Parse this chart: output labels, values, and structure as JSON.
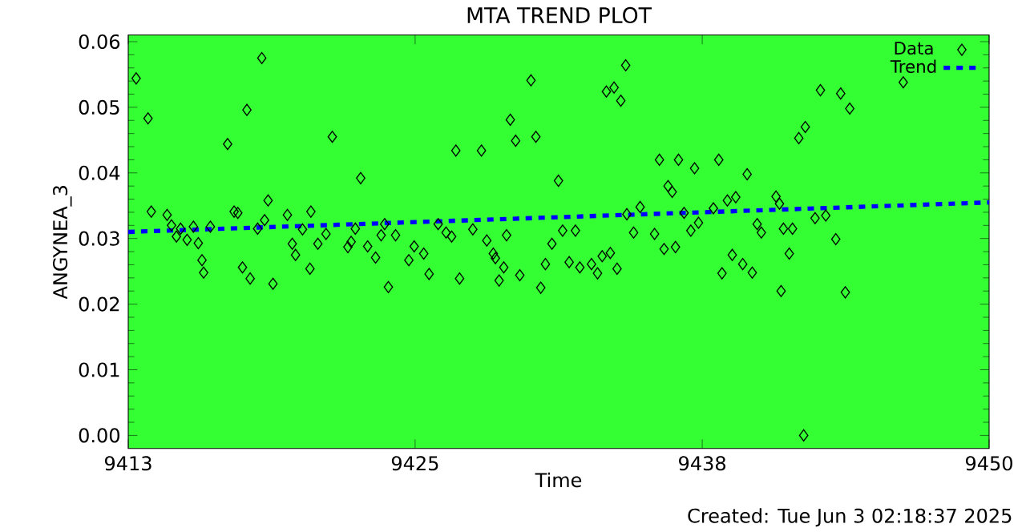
{
  "chart_data": {
    "type": "scatter",
    "title": "MTA TREND PLOT",
    "xlabel": "Time",
    "ylabel": "ANGYNEA_3",
    "annotations": [
      "Created: Tue Jun  3 02:18:37 2025"
    ],
    "xlim": [
      9413,
      9450
    ],
    "xticks": [
      9413,
      {
        "value": 9425.33,
        "label": "9425"
      },
      {
        "value": 9437.67,
        "label": "9438"
      },
      9450
    ],
    "ylim": [
      -0.002,
      0.061
    ],
    "yticks": [
      {
        "value": 0,
        "label": "0.00"
      },
      {
        "value": 0.01,
        "label": "0.01"
      },
      {
        "value": 0.02,
        "label": "0.02"
      },
      {
        "value": 0.03,
        "label": "0.03"
      },
      {
        "value": 0.04,
        "label": "0.04"
      },
      {
        "value": 0.05,
        "label": "0.05"
      },
      {
        "value": 0.06,
        "label": "0.06"
      }
    ],
    "legend": "top right",
    "grid": false,
    "series": [
      {
        "name": "Data",
        "color": "#000000",
        "marker": "diamond",
        "x": [
          9413.34,
          9413.85,
          9418.74,
          9418.1,
          9417.27,
          9421.77,
          9422.99,
          9413.99,
          9414.67,
          9414.86,
          9415.07,
          9415.25,
          9415.53,
          9415.8,
          9416.01,
          9416.17,
          9416.24,
          9416.53,
          9417.55,
          9417.71,
          9417.91,
          9418.24,
          9418.56,
          9418.86,
          9419.01,
          9419.22,
          9419.84,
          9420.05,
          9420.19,
          9420.49,
          9420.81,
          9420.85,
          9421.15,
          9421.5,
          9422.44,
          9422.58,
          9422.76,
          9423.29,
          9423.63,
          9423.87,
          9424.02,
          9424.18,
          9424.49,
          9425.06,
          9425.29,
          9425.7,
          9425.93,
          9426.32,
          9426.66,
          9426.9,
          9427.08,
          9427.24,
          9427.81,
          9428.18,
          9428.41,
          9428.69,
          9428.78,
          9428.94,
          9429.14,
          9429.26,
          9429.42,
          9429.65,
          9429.83,
          9430.31,
          9430.52,
          9430.73,
          9430.93,
          9431.21,
          9431.49,
          9431.67,
          9431.95,
          9432.22,
          9432.41,
          9432.91,
          9433.17,
          9433.37,
          9433.55,
          9433.72,
          9433.88,
          9434.01,
          9434.17,
          9434.38,
          9434.43,
          9434.72,
          9435.0,
          9435.62,
          9435.83,
          9436.03,
          9436.2,
          9436.38,
          9436.52,
          9436.65,
          9436.89,
          9437.18,
          9437.34,
          9437.51,
          9438.15,
          9438.38,
          9438.52,
          9438.75,
          9439.11,
          9438.96,
          9439.41,
          9439.6,
          9439.82,
          9440.03,
          9440.21,
          9440.84,
          9440.99,
          9441.06,
          9441.16,
          9441.41,
          9441.55,
          9441.82,
          9442.1,
          9442.03,
          9442.52,
          9442.75,
          9442.98,
          9443.41,
          9443.62,
          9443.82,
          9444.01,
          9446.31
        ],
        "values": [
          0.0544,
          0.0483,
          0.0575,
          0.0496,
          0.0444,
          0.0455,
          0.0392,
          0.0341,
          0.0336,
          0.032,
          0.0303,
          0.0315,
          0.0298,
          0.0318,
          0.0293,
          0.0267,
          0.0248,
          0.0318,
          0.0341,
          0.0339,
          0.0256,
          0.0239,
          0.0315,
          0.0328,
          0.0358,
          0.0231,
          0.0336,
          0.0292,
          0.0275,
          0.0314,
          0.0254,
          0.0341,
          0.0292,
          0.0307,
          0.0287,
          0.0295,
          0.0315,
          0.0288,
          0.0271,
          0.0305,
          0.0322,
          0.0226,
          0.0305,
          0.0267,
          0.0288,
          0.0277,
          0.0246,
          0.0322,
          0.0309,
          0.0303,
          0.0434,
          0.0239,
          0.0314,
          0.0434,
          0.0297,
          0.0277,
          0.027,
          0.0236,
          0.0256,
          0.0305,
          0.0481,
          0.0449,
          0.0244,
          0.0541,
          0.0455,
          0.0225,
          0.0261,
          0.0292,
          0.0388,
          0.0312,
          0.0264,
          0.0312,
          0.0256,
          0.0261,
          0.0247,
          0.0273,
          0.0524,
          0.0278,
          0.053,
          0.0254,
          0.051,
          0.0564,
          0.0337,
          0.0309,
          0.0348,
          0.0307,
          0.042,
          0.0284,
          0.038,
          0.0371,
          0.0287,
          0.042,
          0.0339,
          0.0312,
          0.0407,
          0.0324,
          0.0346,
          0.042,
          0.0247,
          0.0358,
          0.0363,
          0.0275,
          0.0261,
          0.0398,
          0.0248,
          0.0322,
          0.0309,
          0.0364,
          0.0353,
          0.022,
          0.0315,
          0.0277,
          0.0315,
          0.0453,
          0.047,
          0.0,
          0.0331,
          0.0526,
          0.0335,
          0.0299,
          0.0521,
          0.0218,
          0.0498,
          0.0538
        ]
      },
      {
        "name": "Trend",
        "type": "line",
        "color": "#0000ff",
        "line_style": "dashed",
        "x": [
          9413,
          9450
        ],
        "values": [
          0.031,
          0.0355
        ]
      }
    ]
  }
}
